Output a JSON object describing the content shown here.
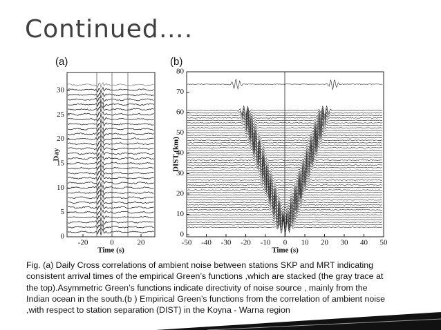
{
  "header": {
    "title": "Continued…."
  },
  "figure": {
    "panels": [
      {
        "label": "(a)",
        "ylabel": "Day",
        "xlabel": "Time (s)",
        "yticks": [
          0,
          5,
          10,
          15,
          20,
          25,
          30
        ],
        "xticks": [
          -20,
          0,
          20
        ]
      },
      {
        "label": "(b)",
        "ylabel": "DIST (km)",
        "xlabel": "Time (s)",
        "yticks": [
          0,
          10,
          20,
          30,
          40,
          50,
          60,
          70,
          80
        ],
        "xticks": [
          -50,
          -40,
          -30,
          -20,
          -10,
          0,
          10,
          20,
          30,
          40,
          50
        ]
      }
    ]
  },
  "caption": {
    "lines": [
      "Fig. (a) Daily Cross correlations of ambient noise between stations SKP and MRT indicating",
      "consistent arrival times of the empirical Green’s functions ,which are stacked (the gray  trace at",
      "the top).Asymmetric Green’s functions indicate directivity  of noise source , mainly from the",
      "Indian ocean in the south.(b ) Empirical  Green’s functions from the correlation of ambient noise",
      ",with respect to station separation (DIST) in the Koyna - Warna region"
    ]
  }
}
